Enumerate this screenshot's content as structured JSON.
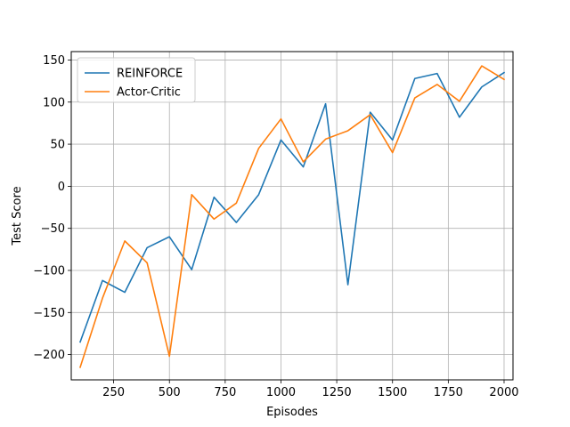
{
  "chart_data": {
    "type": "line",
    "title": "",
    "xlabel": "Episodes",
    "ylabel": "Test Score",
    "xlim": [
      60,
      2040
    ],
    "ylim": [
      -230,
      160
    ],
    "xticks": [
      250,
      500,
      750,
      1000,
      1250,
      1500,
      1750,
      2000
    ],
    "xtick_labels": [
      "250",
      "500",
      "750",
      "1000",
      "1250",
      "1500",
      "1750",
      "2000"
    ],
    "yticks": [
      -200,
      -150,
      -100,
      -50,
      0,
      50,
      100,
      150
    ],
    "ytick_labels": [
      "−200",
      "−150",
      "−100",
      "−50",
      "0",
      "50",
      "100",
      "150"
    ],
    "grid": true,
    "legend_position": "top-left",
    "x": [
      100,
      200,
      300,
      400,
      500,
      600,
      700,
      800,
      900,
      1000,
      1100,
      1200,
      1300,
      1400,
      1500,
      1600,
      1700,
      1800,
      1900,
      2000
    ],
    "series": [
      {
        "name": "REINFORCE",
        "color": "#1f77b4",
        "values": [
          -185,
          -112,
          -126,
          -73,
          -60,
          -99,
          -13,
          -43,
          -10,
          55,
          23,
          98,
          -117,
          88,
          55,
          128,
          134,
          82,
          118,
          135
        ]
      },
      {
        "name": "Actor-Critic",
        "color": "#ff7f0e",
        "values": [
          -215,
          -133,
          -65,
          -91,
          -202,
          -10,
          -39,
          -20,
          45,
          80,
          29,
          56,
          66,
          85,
          40,
          105,
          121,
          101,
          143,
          127
        ]
      }
    ]
  }
}
